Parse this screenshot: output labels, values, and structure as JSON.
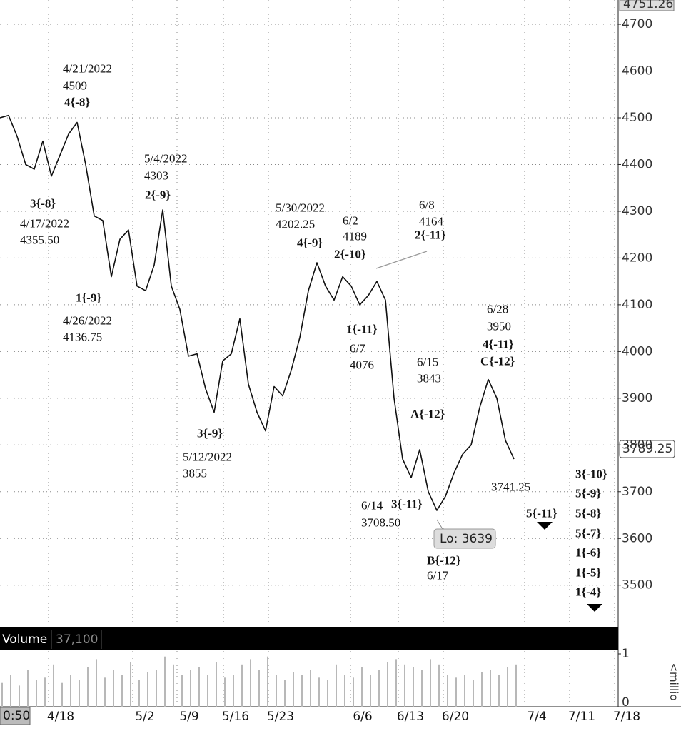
{
  "chart_data": {
    "type": "line",
    "color": "#111111",
    "values": [
      4500,
      4505,
      4460,
      4400,
      4390,
      4450,
      4375,
      4420,
      4465,
      4490,
      4400,
      4290,
      4280,
      4160,
      4240,
      4260,
      4140,
      4130,
      4185,
      4303,
      4140,
      4090,
      3990,
      3995,
      3920,
      3870,
      3980,
      3995,
      4070,
      3930,
      3870,
      3830,
      3925,
      3905,
      3960,
      4030,
      4130,
      4190,
      4140,
      4110,
      4160,
      4140,
      4100,
      4120,
      4150,
      4110,
      3900,
      3770,
      3730,
      3790,
      3700,
      3660,
      3690,
      3740,
      3780,
      3800,
      3880,
      3940,
      3900,
      3810,
      3770
    ],
    "ylim": [
      3411,
      4752
    ],
    "yticks": [
      3500,
      3600,
      3700,
      3800,
      3900,
      4000,
      4100,
      4200,
      4300,
      4400,
      4500,
      4600,
      4700
    ],
    "grid": true,
    "high_label": "4751.26",
    "last_price_label": "3789.25",
    "low_label": "Lo: 3639",
    "time_label": "0:50",
    "xtick_labels": [
      "4/18",
      "5/2",
      "5/9",
      "5/16",
      "5/23",
      "6/6",
      "6/13",
      "6/20",
      "7/4",
      "7/11",
      "7/18"
    ],
    "annotations": [
      "4/21/2022",
      "4509",
      "4{-8}",
      "3{-8}",
      "4/17/2022",
      "4355.50",
      "1{-9}",
      "4/26/2022",
      "4136.75",
      "5/4/2022",
      "4303",
      "2{-9}",
      "3{-9}",
      "5/12/2022",
      "3855",
      "5/30/2022",
      "4202.25",
      "4{-9}",
      "6/2",
      "4189",
      "2{-10}",
      "6/8",
      "4164",
      "2{-11}",
      "1{-11}",
      "6/7",
      "4076",
      "6/15",
      "3843",
      "A{-12}",
      "6/28",
      "3950",
      "4{-11}",
      "C{-12}",
      "3741.25",
      "6/14",
      "3708.50",
      "3{-11}",
      "B{-12}",
      "6/17",
      "5{-11}",
      "3{-10}",
      "5{-9}",
      "5{-8}",
      "5{-7}",
      "1{-6}",
      "1{-5}",
      "1{-4}"
    ],
    "volume": {
      "title": "Volume",
      "last": "37,100",
      "unit_label": "<millio",
      "ylim": [
        0,
        1
      ],
      "yticks": [
        0,
        1
      ],
      "color": "#b8b8b8",
      "values": [
        0.45,
        0.6,
        0.4,
        0.7,
        0.5,
        0.55,
        0.8,
        0.45,
        0.6,
        0.5,
        0.75,
        0.9,
        0.55,
        0.7,
        0.6,
        0.85,
        0.5,
        0.65,
        0.7,
        0.95,
        0.8,
        0.6,
        0.7,
        0.75,
        0.6,
        0.85,
        0.55,
        0.6,
        0.8,
        0.9,
        0.7,
        0.95,
        0.6,
        0.5,
        0.65,
        0.6,
        0.7,
        0.55,
        0.5,
        0.8,
        0.6,
        0.55,
        0.75,
        0.6,
        0.7,
        0.85,
        0.9,
        0.8,
        0.75,
        0.7,
        0.9,
        0.8,
        0.6,
        0.55,
        0.6,
        0.5,
        0.65,
        0.7,
        0.6,
        0.75,
        0.8
      ]
    }
  }
}
